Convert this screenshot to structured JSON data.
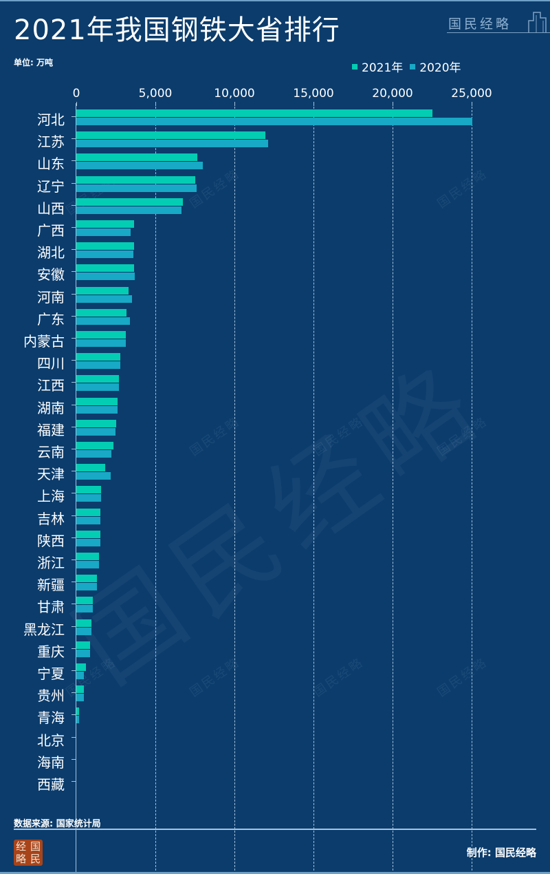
{
  "header": {
    "title": "2021年我国钢铁大省排行",
    "brand": "国民经略",
    "unit": "单位: 万吨"
  },
  "legend": [
    {
      "label": "2021年",
      "color": "#03CDB3"
    },
    {
      "label": "2020年",
      "color": "#17A9C6"
    }
  ],
  "footer": {
    "source": "数据来源: 国家统计局",
    "credit": "制作: 国民经略",
    "logo_chars": [
      "经",
      "国",
      "略",
      "民"
    ]
  },
  "chart_data": {
    "type": "bar",
    "orientation": "horizontal",
    "title": "2021年我国钢铁大省排行",
    "unit": "万吨",
    "xlabel": "",
    "ylabel": "",
    "xlim": [
      0,
      25000
    ],
    "x_ticks": [
      "0",
      "5,000",
      "10,000",
      "15,000",
      "20,000",
      "25,000"
    ],
    "grid": true,
    "legend_position": "top-right",
    "categories": [
      "河北",
      "江苏",
      "山东",
      "辽宁",
      "山西",
      "广西",
      "湖北",
      "安徽",
      "河南",
      "广东",
      "内蒙古",
      "四川",
      "江西",
      "湖南",
      "福建",
      "云南",
      "天津",
      "上海",
      "吉林",
      "陕西",
      "浙江",
      "新疆",
      "甘肃",
      "黑龙江",
      "重庆",
      "宁夏",
      "贵州",
      "青海",
      "北京",
      "海南",
      "西藏"
    ],
    "series": [
      {
        "name": "2021年",
        "color": "#03CDB3",
        "values": [
          22500,
          11950,
          7670,
          7520,
          6740,
          3670,
          3650,
          3640,
          3320,
          3170,
          3120,
          2800,
          2700,
          2610,
          2520,
          2360,
          1810,
          1570,
          1520,
          1510,
          1440,
          1290,
          1040,
          960,
          880,
          590,
          460,
          190,
          0,
          0,
          0
        ]
      },
      {
        "name": "2020年",
        "color": "#17A9C6",
        "values": [
          25050,
          12130,
          8000,
          7610,
          6650,
          3450,
          3610,
          3700,
          3520,
          3390,
          3120,
          2800,
          2680,
          2610,
          2460,
          2230,
          2160,
          1570,
          1520,
          1510,
          1450,
          1290,
          1040,
          970,
          880,
          480,
          460,
          190,
          0,
          0,
          0
        ]
      }
    ]
  }
}
